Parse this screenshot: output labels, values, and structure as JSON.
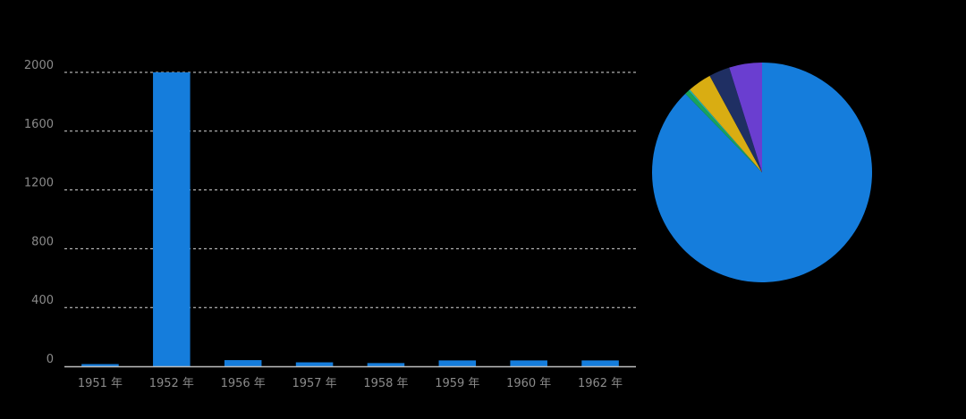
{
  "colors": {
    "background": "#000000",
    "axis_text": "#8a8a8a",
    "gridline": "#d8d8d8",
    "axis_line": "#bdbdbd",
    "bar": "#157ddc",
    "pie": [
      "#157ddc",
      "#18a35b",
      "#25b3b0",
      "#d9ad12",
      "#1f2f63",
      "#6a3ed0"
    ]
  },
  "chart_data": [
    {
      "type": "bar",
      "categories": [
        "1951 年",
        "1952 年",
        "1956 年",
        "1957 年",
        "1958 年",
        "1959 年",
        "1960 年",
        "1962 年"
      ],
      "values": [
        15,
        2000,
        42,
        27,
        22,
        40,
        40,
        40
      ],
      "ylim": [
        0,
        2000
      ],
      "yticks": [
        0,
        400,
        800,
        1200,
        1600,
        2000
      ],
      "grid": true
    },
    {
      "type": "pie",
      "values": [
        2000,
        15,
        5,
        80,
        70,
        110
      ],
      "start": "top",
      "direction": "clockwise"
    }
  ]
}
